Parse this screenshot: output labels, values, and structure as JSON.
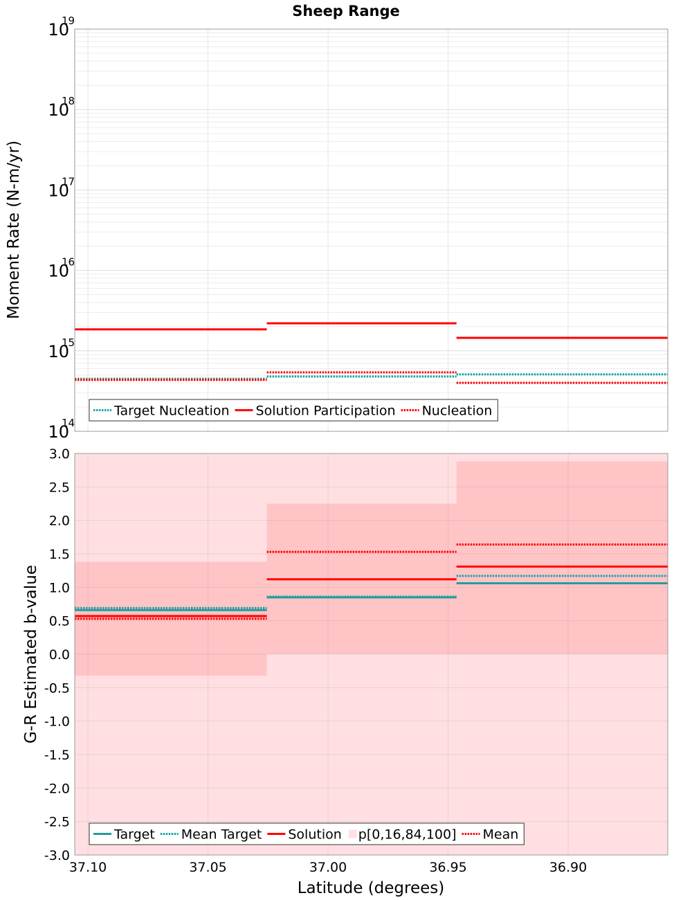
{
  "title": "Sheep Range",
  "xlabel": "Latitude (degrees)",
  "chart_data": [
    {
      "type": "line",
      "panel": "top",
      "ylabel": "Moment Rate (N-m/yr)",
      "yscale": "log",
      "ylim": [
        100000000000000.0,
        1e+19
      ],
      "xlim": [
        37.1055,
        36.8585
      ],
      "x_reversed": true,
      "segments": [
        [
          37.1055,
          37.0255
        ],
        [
          37.0255,
          36.9465
        ],
        [
          36.9465,
          36.8585
        ]
      ],
      "yticks": [
        {
          "base": "10",
          "exp": "14",
          "value": 100000000000000.0
        },
        {
          "base": "10",
          "exp": "15",
          "value": 1000000000000000.0
        },
        {
          "base": "10",
          "exp": "16",
          "value": 1e+16
        },
        {
          "base": "10",
          "exp": "17",
          "value": 1e+17
        },
        {
          "base": "10",
          "exp": "18",
          "value": 1e+18
        },
        {
          "base": "10",
          "exp": "19",
          "value": 1e+19
        }
      ],
      "grid": true,
      "legend_position": "bottom-left",
      "series": [
        {
          "name": "Target Nucleation",
          "color": "#1aa3a3",
          "style": "dotted",
          "values": [
            450000000000000.0,
            480000000000000.0,
            510000000000000.0
          ]
        },
        {
          "name": "Solution Participation",
          "color": "#ff0000",
          "style": "solid",
          "values": [
            1850000000000000.0,
            2200000000000000.0,
            1450000000000000.0
          ]
        },
        {
          "name": "Nucleation",
          "color": "#ff0000",
          "style": "dotted",
          "values": [
            435000000000000.0,
            540000000000000.0,
            400000000000000.0
          ]
        }
      ]
    },
    {
      "type": "line",
      "panel": "bottom",
      "ylabel": "G-R Estimated b-value",
      "ylim": [
        -3.0,
        3.0
      ],
      "xlim": [
        37.1055,
        36.8585
      ],
      "x_reversed": true,
      "segments": [
        [
          37.1055,
          37.0255
        ],
        [
          37.0255,
          36.9465
        ],
        [
          36.9465,
          36.8585
        ]
      ],
      "yticks": [
        "-3.0",
        "-2.5",
        "-2.0",
        "-1.5",
        "-1.0",
        "-0.5",
        "0.0",
        "0.5",
        "1.0",
        "1.5",
        "2.0",
        "2.5",
        "3.0"
      ],
      "xticks": [
        "37.10",
        "37.05",
        "37.00",
        "36.95",
        "36.90"
      ],
      "grid": true,
      "legend_position": "bottom-left",
      "band_outer": {
        "name": "p[0,16,84,100]",
        "color": "#ffdfe2",
        "low": [
          -3.0,
          -3.0,
          -3.0
        ],
        "high": [
          3.0,
          3.0,
          3.0
        ]
      },
      "band_inner": {
        "color": "#ffc4c6",
        "low": [
          -0.32,
          0.0,
          0.0
        ],
        "high": [
          1.38,
          2.25,
          2.88
        ]
      },
      "series": [
        {
          "name": "Target",
          "color": "#2a9a9a",
          "style": "solid",
          "values": [
            0.66,
            0.85,
            1.06
          ]
        },
        {
          "name": "Mean Target",
          "color": "#1aa3a3",
          "style": "dotted",
          "values": [
            0.69,
            0.86,
            1.17
          ]
        },
        {
          "name": "Solution",
          "color": "#ff0000",
          "style": "solid",
          "values": [
            0.57,
            1.12,
            1.31
          ]
        },
        {
          "name": "Mean",
          "color": "#ff0000",
          "style": "dotted",
          "values": [
            0.53,
            1.53,
            1.64
          ]
        }
      ],
      "legend_order": [
        "Target",
        "Mean Target",
        "Solution",
        "p[0,16,84,100]",
        "Mean"
      ]
    }
  ]
}
